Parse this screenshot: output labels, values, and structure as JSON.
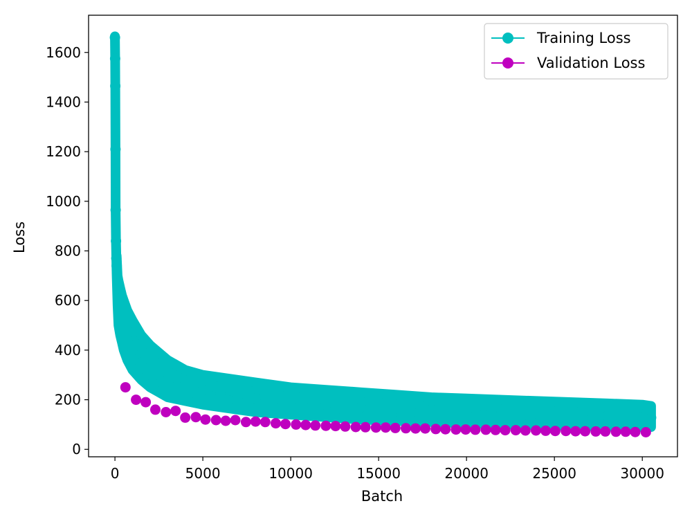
{
  "chart_data": {
    "type": "line",
    "title": "",
    "xlabel": "Batch",
    "ylabel": "Loss",
    "xlim": [
      -1500,
      32000
    ],
    "ylim": [
      -30,
      1750
    ],
    "xticks": [
      0,
      5000,
      10000,
      15000,
      20000,
      25000,
      30000
    ],
    "xtick_labels": [
      "0",
      "5000",
      "10000",
      "15000",
      "20000",
      "25000",
      "30000"
    ],
    "yticks": [
      0,
      200,
      400,
      600,
      800,
      1000,
      1200,
      1400,
      1600
    ],
    "ytick_labels": [
      "0",
      "200",
      "400",
      "600",
      "800",
      "1000",
      "1200",
      "1400",
      "1600"
    ],
    "grid": false,
    "legend_position": "upper right",
    "series": [
      {
        "name": "Training Loss",
        "color": "#00bfbf",
        "marker": "circle",
        "x": [
          0,
          10,
          20,
          30,
          40,
          60,
          80,
          100,
          150,
          200,
          300,
          400,
          500,
          700,
          1000,
          1500,
          2000,
          2500,
          3000,
          4000,
          5000,
          6000,
          7000,
          8000,
          9000,
          10000,
          12000,
          14000,
          16000,
          18000,
          20000,
          22000,
          24000,
          26000,
          28000,
          30000,
          30500
        ],
        "y": [
          1660,
          1575,
          1465,
          1210,
          965,
          840,
          770,
          740,
          660,
          600,
          550,
          520,
          490,
          440,
          400,
          350,
          320,
          300,
          280,
          260,
          240,
          225,
          215,
          205,
          195,
          190,
          180,
          170,
          165,
          160,
          155,
          150,
          145,
          140,
          135,
          130,
          128
        ],
        "band_lower": [
          1660,
          1575,
          1465,
          1205,
          960,
          835,
          760,
          700,
          580,
          500,
          460,
          430,
          400,
          360,
          320,
          280,
          250,
          230,
          210,
          195,
          180,
          170,
          160,
          150,
          145,
          140,
          130,
          120,
          115,
          110,
          105,
          100,
          98,
          95,
          92,
          90,
          90
        ],
        "band_upper": [
          1665,
          1580,
          1470,
          1215,
          970,
          845,
          780,
          780,
          700,
          680,
          650,
          620,
          600,
          560,
          520,
          460,
          420,
          390,
          360,
          320,
          300,
          290,
          280,
          270,
          260,
          250,
          240,
          230,
          220,
          210,
          205,
          200,
          195,
          190,
          185,
          180,
          175
        ]
      },
      {
        "name": "Validation Loss",
        "color": "#bf00bf",
        "marker": "circle",
        "x": [
          600,
          1200,
          1750,
          2300,
          2900,
          3450,
          4000,
          4600,
          5150,
          5750,
          6300,
          6850,
          7450,
          8000,
          8550,
          9150,
          9700,
          10300,
          10850,
          11400,
          12000,
          12550,
          13100,
          13700,
          14250,
          14850,
          15400,
          15950,
          16550,
          17100,
          17650,
          18250,
          18800,
          19400,
          19950,
          20500,
          21100,
          21650,
          22200,
          22800,
          23350,
          23950,
          24500,
          25050,
          25650,
          26200,
          26750,
          27350,
          27900,
          28500,
          29050,
          29600,
          30200
        ],
        "y": [
          250,
          200,
          190,
          160,
          150,
          155,
          128,
          130,
          120,
          118,
          115,
          118,
          110,
          112,
          110,
          105,
          102,
          100,
          98,
          96,
          95,
          94,
          92,
          90,
          89,
          88,
          88,
          86,
          85,
          84,
          84,
          82,
          81,
          80,
          80,
          79,
          79,
          78,
          77,
          77,
          76,
          76,
          75,
          74,
          74,
          73,
          73,
          72,
          72,
          71,
          71,
          70,
          69
        ]
      }
    ]
  }
}
